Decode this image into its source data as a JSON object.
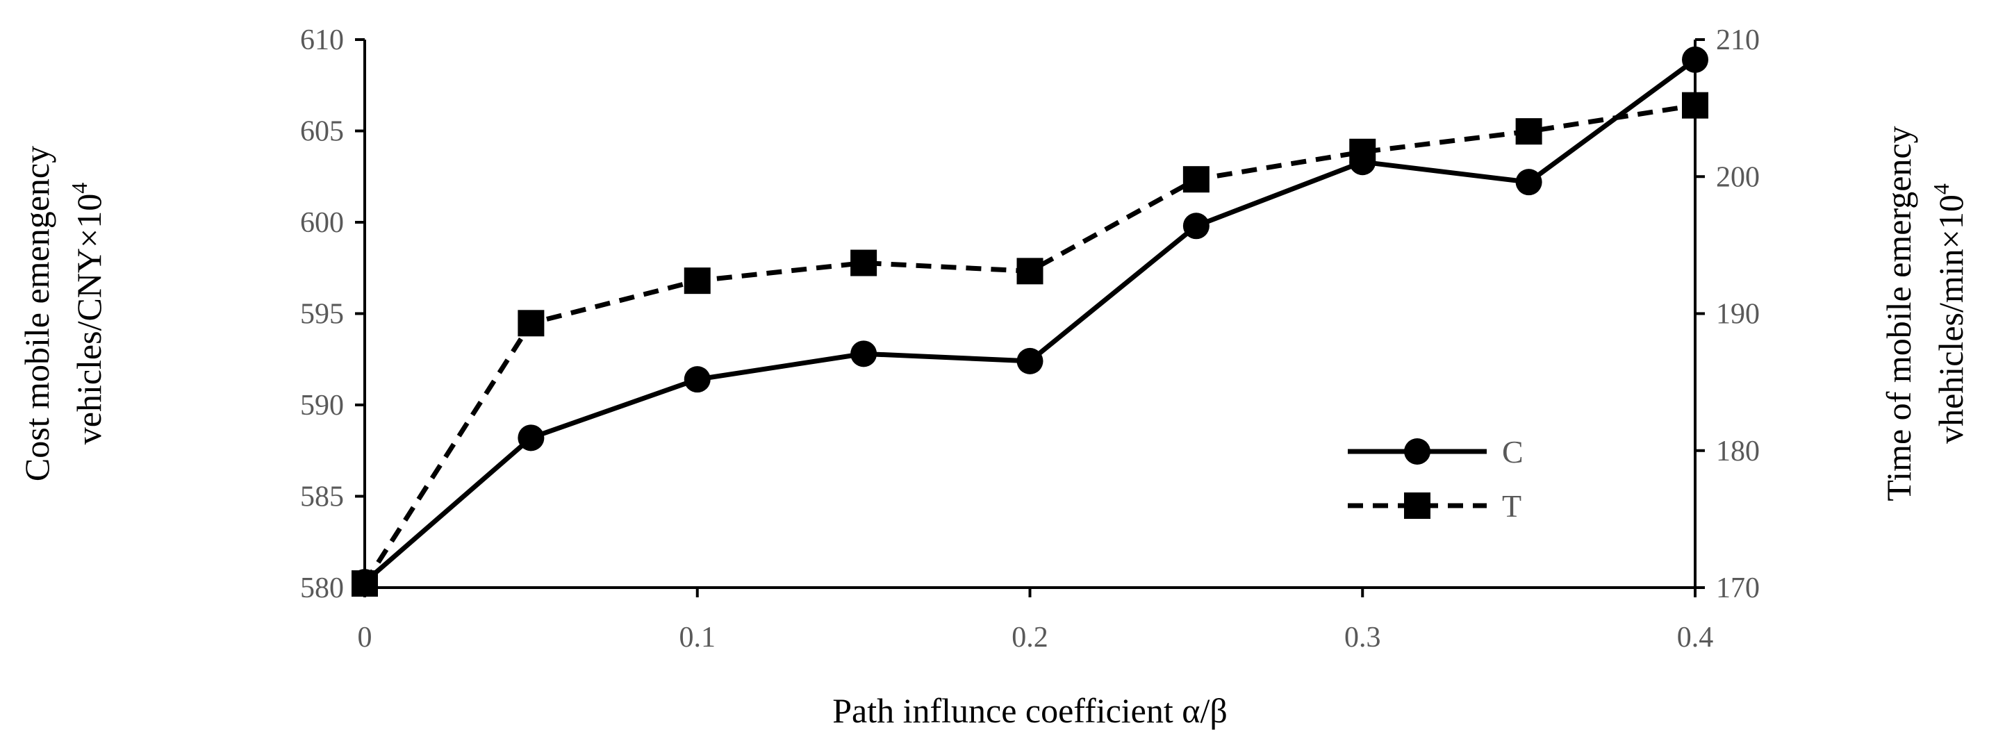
{
  "chart_data": {
    "type": "line",
    "x": [
      0,
      0.05,
      0.1,
      0.15,
      0.2,
      0.25,
      0.3,
      0.35,
      0.4
    ],
    "x_ticks": [
      "0",
      "0.1",
      "0.2",
      "0.3",
      "0.4"
    ],
    "x_tick_values": [
      0,
      0.1,
      0.2,
      0.3,
      0.4
    ],
    "xlim": [
      0,
      0.4
    ],
    "xlabel": "Path influnce  coefficient  α/β",
    "y_left": {
      "label_line1": "Cost mobile  emengency",
      "label_line2": "vehicles/CNY×10",
      "label_sup": "4",
      "ylim": [
        580,
        610
      ],
      "ticks": [
        580,
        585,
        590,
        595,
        600,
        605,
        610
      ]
    },
    "y_right": {
      "label_line1": "Time of mobile emergency",
      "label_line2": "vhehicles/min×10",
      "label_sup": "4",
      "ylim": [
        170,
        210
      ],
      "ticks": [
        170,
        180,
        190,
        200,
        210
      ]
    },
    "series": [
      {
        "name": "C",
        "axis": "left",
        "style": "solid",
        "marker": "circle",
        "color": "#000000",
        "values": [
          580.3,
          588.2,
          591.4,
          592.8,
          592.4,
          599.8,
          603.3,
          602.2,
          608.9
        ]
      },
      {
        "name": "T",
        "axis": "right",
        "style": "dashed",
        "marker": "square",
        "color": "#000000",
        "values": [
          170.3,
          189.3,
          192.4,
          193.7,
          193.1,
          199.8,
          201.8,
          203.3,
          205.2
        ]
      }
    ],
    "legend_position": "inside-right",
    "grid": false
  }
}
